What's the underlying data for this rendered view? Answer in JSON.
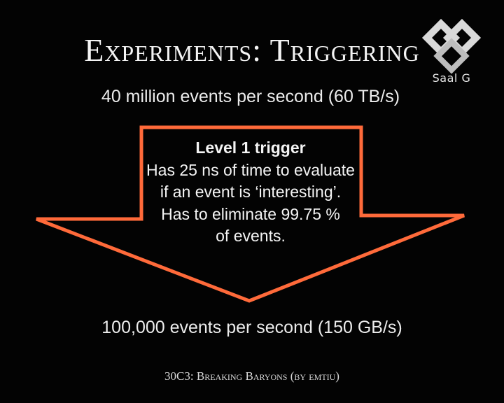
{
  "slide": {
    "title": "Experiments: Triggering",
    "input_rate": "40 million events per second (60 TB/s)",
    "output_rate": "100,000 events per second (150 GB/s)",
    "footer": "30C3: Breaking Baryons (by emtiu)"
  },
  "trigger": {
    "heading": "Level 1 trigger",
    "lines": [
      "Has 25 ns of time to evaluate",
      "if an event is ‘interesting’.",
      "Has to eliminate 99.75 %",
      "of events."
    ]
  },
  "watermark": {
    "label": "Saal G",
    "icon": "saal-g-logo-icon"
  },
  "colors": {
    "background": "#030303",
    "arrow_outline": "#ff6a3a",
    "text": "#f2f2f2",
    "logo": "#d9d9d9"
  }
}
